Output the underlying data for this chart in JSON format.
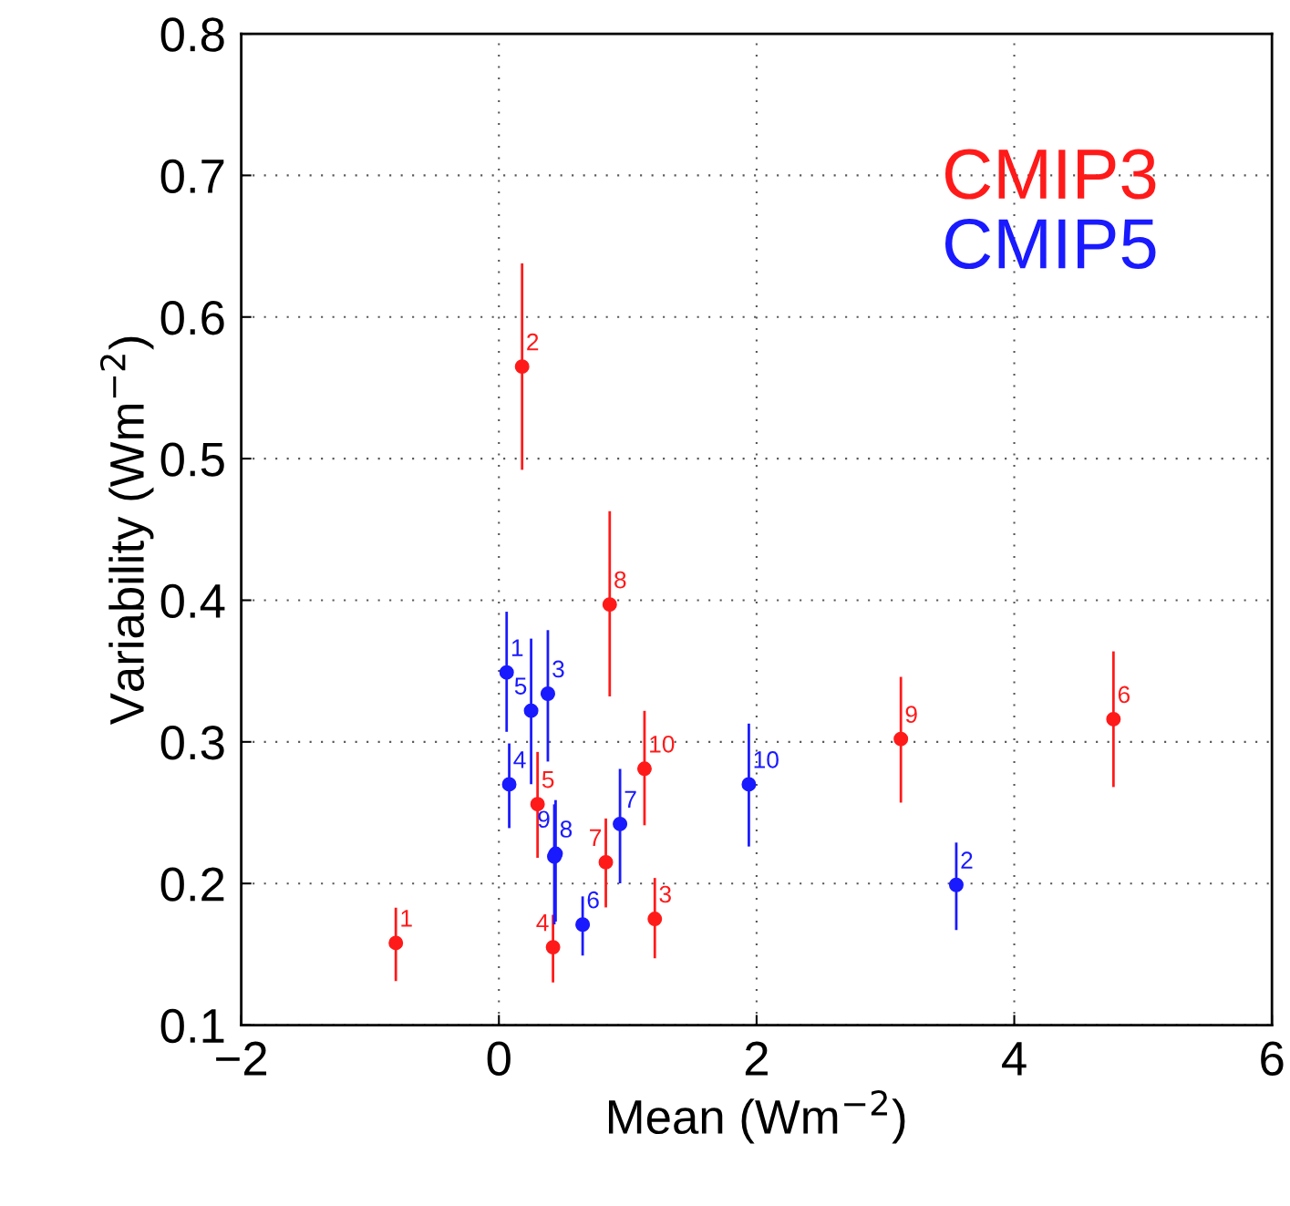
{
  "chart_data": {
    "type": "scatter",
    "xlabel": "Mean (Wm$^{−2}$)",
    "ylabel": "Variability (Wm$^{−2}$)",
    "xlim": [
      -2,
      6
    ],
    "xticks": [
      {
        "value": -2,
        "label": "−2"
      },
      0,
      2,
      4,
      6
    ],
    "ylim": [
      0.1,
      0.8
    ],
    "yticks": [
      0.1,
      0.2,
      0.3,
      0.4,
      0.5,
      0.6,
      0.7,
      0.8
    ],
    "grid": true,
    "marker": "circle",
    "legend": "top right",
    "series": [
      {
        "name": "CMIP3",
        "color": "#ff1a1a",
        "x": [
          -0.8,
          0.18,
          1.21,
          0.42,
          0.3,
          4.77,
          0.83,
          0.86,
          3.12,
          1.13
        ],
        "values": [
          0.158,
          0.565,
          0.175,
          0.155,
          0.256,
          0.316,
          0.215,
          0.397,
          0.302,
          0.281
        ],
        "errors": [
          [
            0.132,
            0.182
          ],
          [
            0.493,
            0.637
          ],
          [
            0.148,
            0.203
          ],
          [
            0.131,
            0.177
          ],
          [
            0.219,
            0.292
          ],
          [
            0.269,
            0.363
          ],
          [
            0.184,
            0.245
          ],
          [
            0.333,
            0.462
          ],
          [
            0.258,
            0.345
          ],
          [
            0.242,
            0.321
          ]
        ]
      },
      {
        "name": "CMIP5",
        "color": "#1a1aff",
        "x": [
          0.06,
          3.55,
          0.38,
          0.08,
          0.25,
          0.65,
          0.94,
          0.44,
          0.43,
          1.94
        ],
        "values": [
          0.349,
          0.199,
          0.334,
          0.27,
          0.322,
          0.171,
          0.242,
          0.221,
          0.219,
          0.27
        ],
        "errors": [
          [
            0.308,
            0.391
          ],
          [
            0.168,
            0.228
          ],
          [
            0.287,
            0.378
          ],
          [
            0.24,
            0.298
          ],
          [
            0.271,
            0.372
          ],
          [
            0.15,
            0.19
          ],
          [
            0.201,
            0.28
          ],
          [
            0.174,
            0.258
          ],
          [
            0.172,
            0.255
          ],
          [
            0.227,
            0.312
          ]
        ]
      }
    ],
    "annotations": [
      {
        "text": "1",
        "x": -0.8,
        "y": 0.158
      },
      {
        "text": "2",
        "x": 0.18,
        "y": 0.565
      },
      {
        "text": "3",
        "x": 1.21,
        "y": 0.175
      },
      {
        "text": "4",
        "x": 0.42,
        "y": 0.155
      },
      {
        "text": "5",
        "x": 0.3,
        "y": 0.256
      },
      {
        "text": "6",
        "x": 4.77,
        "y": 0.316
      },
      {
        "text": "7",
        "x": 0.83,
        "y": 0.215
      },
      {
        "text": "8",
        "x": 0.86,
        "y": 0.397
      },
      {
        "text": "9",
        "x": 3.12,
        "y": 0.302
      },
      {
        "text": "10",
        "x": 1.13,
        "y": 0.281
      },
      {
        "text": "1",
        "x": 0.06,
        "y": 0.349
      },
      {
        "text": "2",
        "x": 3.55,
        "y": 0.199
      },
      {
        "text": "3",
        "x": 0.38,
        "y": 0.334
      },
      {
        "text": "4",
        "x": 0.08,
        "y": 0.27
      },
      {
        "text": "5",
        "x": 0.25,
        "y": 0.322
      },
      {
        "text": "6",
        "x": 0.65,
        "y": 0.171
      },
      {
        "text": "7",
        "x": 0.94,
        "y": 0.242
      },
      {
        "text": "8",
        "x": 0.44,
        "y": 0.221
      },
      {
        "text": "9",
        "x": 0.43,
        "y": 0.219
      },
      {
        "text": "10",
        "x": 1.94,
        "y": 0.27
      }
    ]
  }
}
